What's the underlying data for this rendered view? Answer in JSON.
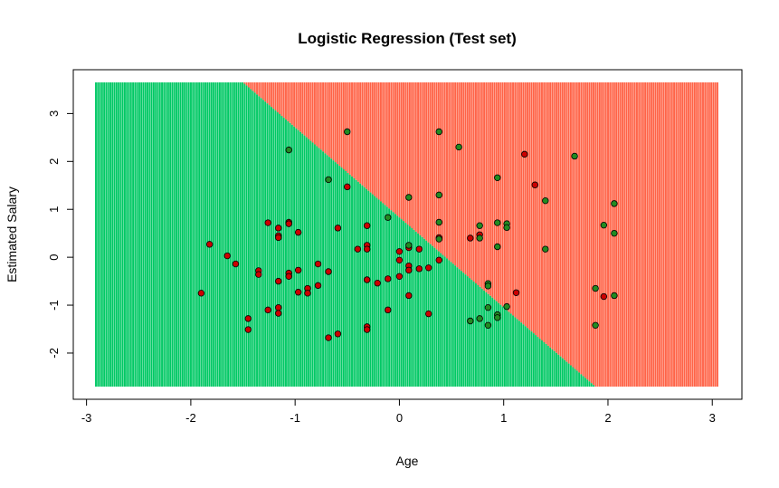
{
  "chart_data": {
    "type": "scatter",
    "title": "Logistic Regression (Test set)",
    "xlabel": "Age",
    "ylabel": "Estimated Salary",
    "xlim": [
      -2.91,
      3.05
    ],
    "ylim": [
      -2.7,
      3.65
    ],
    "xticks": [
      -3,
      -2,
      -1,
      0,
      1,
      2,
      3
    ],
    "yticks": [
      -2,
      -1,
      0,
      1,
      2,
      3
    ],
    "xtick_labels": [
      "-3",
      "-2",
      "-1",
      "0",
      "1",
      "2",
      "3"
    ],
    "ytick_labels": [
      "-2",
      "-1",
      "0",
      "1",
      "2",
      "3"
    ],
    "grid": false,
    "background_regions": {
      "description": "predicted class grid",
      "class_0_color": "#FF6347",
      "class_1_color": "#00C864",
      "boundary": [
        [
          -1.5,
          3.65
        ],
        [
          1.88,
          -2.7
        ]
      ]
    },
    "point_colors": {
      "0": "#CC0000",
      "1": "#228B22"
    },
    "series": [
      {
        "name": "0",
        "points": [
          [
            -1.9,
            -0.75
          ],
          [
            -1.82,
            0.27
          ],
          [
            -1.65,
            0.03
          ],
          [
            -1.57,
            -0.14
          ],
          [
            -1.45,
            -1.28
          ],
          [
            -1.45,
            -1.51
          ],
          [
            -1.35,
            -0.28
          ],
          [
            -1.35,
            -0.36
          ],
          [
            -1.26,
            0.72
          ],
          [
            -1.26,
            -1.1
          ],
          [
            -1.16,
            0.61
          ],
          [
            -1.16,
            0.45
          ],
          [
            -1.16,
            0.41
          ],
          [
            -1.16,
            -0.5
          ],
          [
            -1.16,
            -1.05
          ],
          [
            -1.16,
            -1.17
          ],
          [
            -1.06,
            0.73
          ],
          [
            -1.06,
            0.7
          ],
          [
            -1.06,
            -0.33
          ],
          [
            -1.06,
            -0.4
          ],
          [
            -0.97,
            0.52
          ],
          [
            -0.97,
            -0.27
          ],
          [
            -0.97,
            -0.73
          ],
          [
            -0.88,
            -0.65
          ],
          [
            -0.88,
            -0.75
          ],
          [
            -0.78,
            -0.14
          ],
          [
            -0.78,
            -0.59
          ],
          [
            -0.68,
            -0.3
          ],
          [
            -0.68,
            -1.68
          ],
          [
            -0.59,
            0.61
          ],
          [
            -0.59,
            -1.6
          ],
          [
            -0.5,
            1.47
          ],
          [
            -0.4,
            0.17
          ],
          [
            -0.31,
            0.66
          ],
          [
            -0.31,
            0.25
          ],
          [
            -0.31,
            0.17
          ],
          [
            -0.31,
            -0.47
          ],
          [
            -0.31,
            -1.45
          ],
          [
            -0.31,
            -1.51
          ],
          [
            -0.21,
            -0.54
          ],
          [
            -0.11,
            -0.45
          ],
          [
            -0.11,
            -1.1
          ],
          [
            0,
            0.12
          ],
          [
            0,
            -0.06
          ],
          [
            0,
            -0.4
          ],
          [
            0.09,
            0.2
          ],
          [
            0.09,
            -0.18
          ],
          [
            0.09,
            -0.27
          ],
          [
            0.09,
            -0.8
          ],
          [
            0.19,
            0.17
          ],
          [
            0.19,
            -0.24
          ],
          [
            0.28,
            -0.22
          ],
          [
            0.28,
            -1.18
          ],
          [
            0.38,
            0.41
          ],
          [
            0.38,
            -0.06
          ],
          [
            0.68,
            0.4
          ],
          [
            0.77,
            0.47
          ],
          [
            1.12,
            -0.74
          ],
          [
            1.2,
            2.15
          ],
          [
            1.3,
            1.51
          ],
          [
            1.96,
            -0.82
          ]
        ]
      },
      {
        "name": "1",
        "points": [
          [
            -1.06,
            2.24
          ],
          [
            -0.5,
            2.62
          ],
          [
            -0.68,
            1.62
          ],
          [
            -0.11,
            0.83
          ],
          [
            0.09,
            1.25
          ],
          [
            0.09,
            0.25
          ],
          [
            0.38,
            2.62
          ],
          [
            0.38,
            1.3
          ],
          [
            0.38,
            0.73
          ],
          [
            0.38,
            0.38
          ],
          [
            0.57,
            2.3
          ],
          [
            0.68,
            -1.33
          ],
          [
            0.77,
            0.66
          ],
          [
            0.77,
            0.4
          ],
          [
            0.77,
            -1.28
          ],
          [
            0.85,
            -0.55
          ],
          [
            0.85,
            -0.6
          ],
          [
            0.85,
            -1.05
          ],
          [
            0.85,
            -1.42
          ],
          [
            0.94,
            1.66
          ],
          [
            0.94,
            0.72
          ],
          [
            0.94,
            0.22
          ],
          [
            0.94,
            -1.2
          ],
          [
            0.94,
            -1.26
          ],
          [
            1.03,
            0.7
          ],
          [
            1.03,
            0.62
          ],
          [
            1.03,
            -1.03
          ],
          [
            1.4,
            1.18
          ],
          [
            1.4,
            0.17
          ],
          [
            1.68,
            2.11
          ],
          [
            1.88,
            -0.65
          ],
          [
            1.88,
            -1.42
          ],
          [
            1.96,
            0.67
          ],
          [
            2.06,
            1.12
          ],
          [
            2.06,
            0.5
          ],
          [
            2.06,
            -0.8
          ]
        ]
      }
    ]
  }
}
